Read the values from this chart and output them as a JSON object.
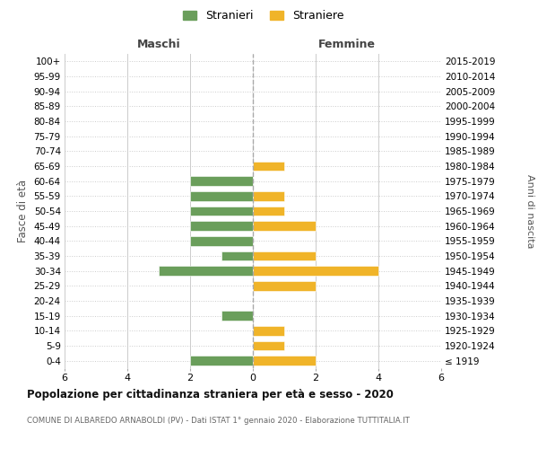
{
  "age_groups": [
    "100+",
    "95-99",
    "90-94",
    "85-89",
    "80-84",
    "75-79",
    "70-74",
    "65-69",
    "60-64",
    "55-59",
    "50-54",
    "45-49",
    "40-44",
    "35-39",
    "30-34",
    "25-29",
    "20-24",
    "15-19",
    "10-14",
    "5-9",
    "0-4"
  ],
  "birth_years": [
    "≤ 1919",
    "1920-1924",
    "1925-1929",
    "1930-1934",
    "1935-1939",
    "1940-1944",
    "1945-1949",
    "1950-1954",
    "1955-1959",
    "1960-1964",
    "1965-1969",
    "1970-1974",
    "1975-1979",
    "1980-1984",
    "1985-1989",
    "1990-1994",
    "1995-1999",
    "2000-2004",
    "2005-2009",
    "2010-2014",
    "2015-2019"
  ],
  "maschi": [
    0,
    0,
    0,
    0,
    0,
    0,
    0,
    0,
    2,
    2,
    2,
    2,
    2,
    1,
    3,
    0,
    0,
    1,
    0,
    0,
    2
  ],
  "femmine": [
    0,
    0,
    0,
    0,
    0,
    0,
    0,
    1,
    0,
    1,
    1,
    2,
    0,
    2,
    4,
    2,
    0,
    0,
    1,
    1,
    2
  ],
  "male_color": "#6a9e5b",
  "female_color": "#f0b429",
  "title": "Popolazione per cittadinanza straniera per età e sesso - 2020",
  "subtitle": "COMUNE DI ALBAREDO ARNABOLDI (PV) - Dati ISTAT 1° gennaio 2020 - Elaborazione TUTTITALIA.IT",
  "ylabel_left": "Fasce di età",
  "ylabel_right": "Anni di nascita",
  "xlabel_left": "Maschi",
  "xlabel_right": "Femmine",
  "legend_male": "Stranieri",
  "legend_female": "Straniere",
  "xlim": 6,
  "background_color": "#ffffff",
  "grid_color": "#cccccc"
}
